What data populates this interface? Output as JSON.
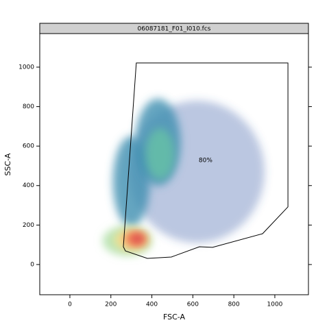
{
  "chart_data": {
    "type": "density-gate",
    "title": "06087181_F01_I010.fcs",
    "x_label": "FSC-A",
    "y_label": "SSC-A",
    "xlim": [
      -147,
      1164
    ],
    "ylim": [
      -153,
      1170
    ],
    "xticks": [
      0,
      200,
      400,
      600,
      800,
      1000
    ],
    "yticks": [
      0,
      200,
      400,
      600,
      800,
      1000
    ],
    "density_regions": [
      {
        "x": 620,
        "y": 470,
        "rx": 330,
        "ry": 360,
        "color": "#3b5fa8"
      },
      {
        "x": 300,
        "y": 420,
        "rx": 90,
        "ry": 230,
        "color": "#3f8fb0"
      },
      {
        "x": 430,
        "y": 620,
        "rx": 110,
        "ry": 220,
        "color": "#3f8fb0"
      },
      {
        "x": 440,
        "y": 560,
        "rx": 70,
        "ry": 130,
        "color": "#66c2a5"
      },
      {
        "x": 280,
        "y": 120,
        "rx": 120,
        "ry": 75,
        "color": "#abdda4"
      },
      {
        "x": 300,
        "y": 125,
        "rx": 85,
        "ry": 55,
        "color": "#fee08b"
      },
      {
        "x": 320,
        "y": 130,
        "rx": 55,
        "ry": 40,
        "color": "#f46d43"
      },
      {
        "x": 330,
        "y": 130,
        "rx": 32,
        "ry": 25,
        "color": "#d53e4f"
      }
    ],
    "gate": {
      "x": [
        324,
        1064,
        1064,
        940,
        696,
        632,
        495,
        378,
        271,
        261
      ],
      "y": [
        1021,
        1021,
        292,
        156,
        87,
        90,
        38,
        31,
        69,
        90
      ]
    },
    "gate_label": {
      "text": "80%",
      "x": 662,
      "y": 528
    }
  }
}
